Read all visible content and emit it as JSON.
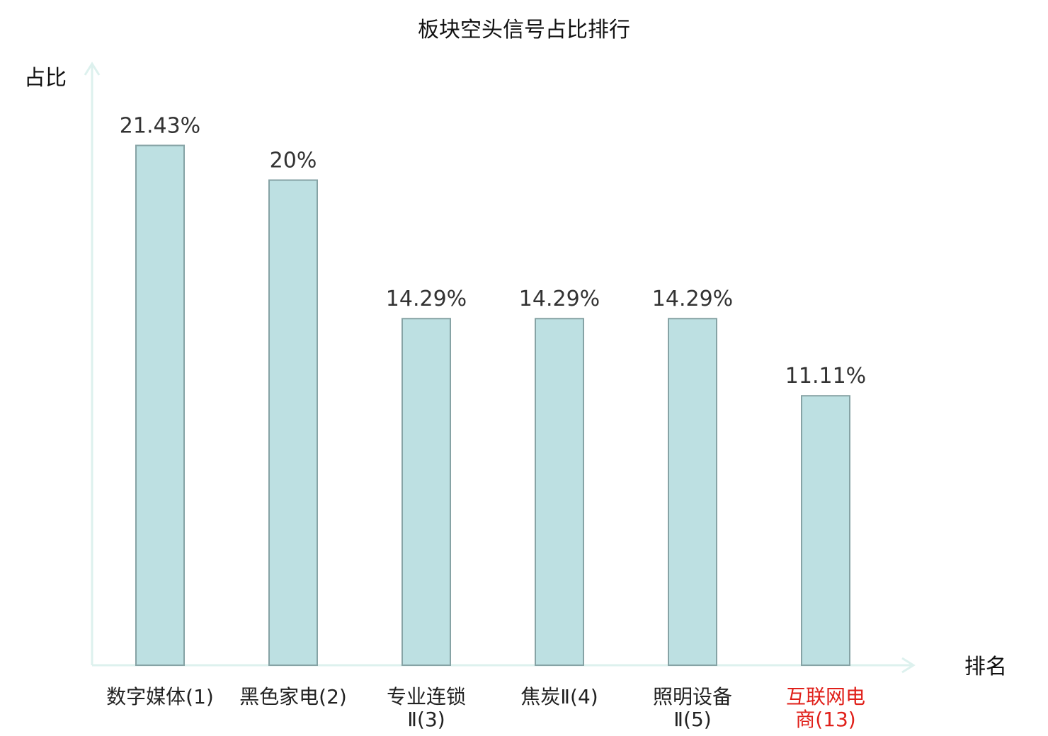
{
  "chart_data": {
    "type": "bar",
    "title": "板块空头信号占比排行",
    "ylabel": "占比",
    "xlabel": "排名",
    "categories": [
      [
        "数字媒体(1)"
      ],
      [
        "黑色家电(2)"
      ],
      [
        "专业连锁",
        "Ⅱ(3)"
      ],
      [
        "焦炭Ⅱ(4)"
      ],
      [
        "照明设备",
        "Ⅱ(5)"
      ],
      [
        "互联网电",
        "商(13)"
      ]
    ],
    "values": [
      21.43,
      20,
      14.29,
      14.29,
      14.29,
      11.11
    ],
    "value_labels": [
      "21.43%",
      "20%",
      "14.29%",
      "14.29%",
      "14.29%",
      "11.11%"
    ],
    "highlight_index": 5,
    "ylim": [
      0,
      24.8
    ],
    "grid": false,
    "colors": {
      "bar_fill": "#bde0e2",
      "bar_stroke": "#86a3a5",
      "axis": "#ddf1ee",
      "label": "#222222",
      "highlight": "#e0201a"
    }
  }
}
